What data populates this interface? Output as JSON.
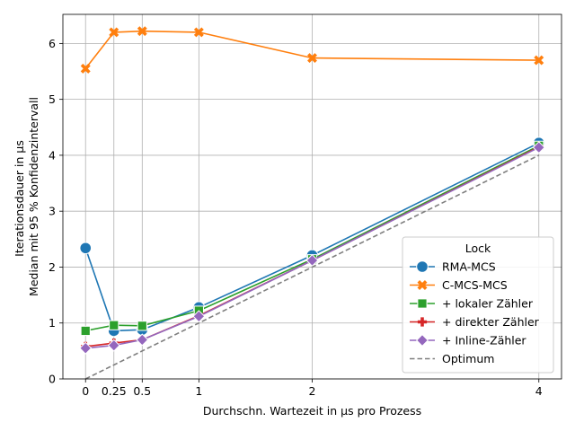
{
  "chart_data": {
    "type": "line",
    "xlabel": "Durchschn. Wartezeit in µs pro Prozess",
    "ylabel_lines": [
      "Iterationsdauer in µs",
      "Median mit 95 % Konfidenzintervall"
    ],
    "x_ticks": [
      0,
      0.25,
      0.5,
      1,
      2,
      4
    ],
    "x_tick_labels": [
      "0",
      "0.25",
      "0.5",
      "1",
      "2",
      "4"
    ],
    "y_ticks": [
      0,
      1,
      2,
      3,
      4,
      5,
      6
    ],
    "y_tick_labels": [
      "0",
      "1",
      "2",
      "3",
      "4",
      "5",
      "6"
    ],
    "xlim": [
      -0.2,
      4.2
    ],
    "ylim": [
      0,
      6.52
    ],
    "grid": true,
    "legend": {
      "title": "Lock",
      "placement": "lower-right"
    },
    "series": [
      {
        "name": "RMA-MCS",
        "color": "#1f77b4",
        "marker": "circle",
        "x": [
          0,
          0.25,
          0.5,
          1,
          2,
          4
        ],
        "values": [
          2.34,
          0.86,
          0.88,
          1.28,
          2.21,
          4.22
        ]
      },
      {
        "name": "C-MCS-MCS",
        "color": "#ff7f0e",
        "marker": "x",
        "x": [
          0,
          0.25,
          0.5,
          1,
          2,
          4
        ],
        "values": [
          5.55,
          6.2,
          6.22,
          6.2,
          5.74,
          5.7
        ]
      },
      {
        "name": "+ lokaler Zähler",
        "color": "#2ca02c",
        "marker": "square",
        "x": [
          0,
          0.25,
          0.5,
          1,
          2,
          4
        ],
        "values": [
          0.86,
          0.96,
          0.95,
          1.22,
          2.14,
          4.17
        ]
      },
      {
        "name": "+ direkter Zähler",
        "color": "#d62728",
        "marker": "plus",
        "x": [
          0,
          0.25,
          0.5,
          1,
          2,
          4
        ],
        "values": [
          0.58,
          0.64,
          0.7,
          1.13,
          2.12,
          4.15
        ]
      },
      {
        "name": "+ Inline-Zähler",
        "color": "#9467bd",
        "marker": "diamond",
        "x": [
          0,
          0.25,
          0.5,
          1,
          2,
          4
        ],
        "values": [
          0.55,
          0.6,
          0.7,
          1.12,
          2.12,
          4.14
        ]
      },
      {
        "name": "Optimum",
        "color": "#7f7f7f",
        "marker": "none",
        "dashed": true,
        "x": [
          0,
          4
        ],
        "values": [
          0,
          4
        ]
      }
    ]
  }
}
